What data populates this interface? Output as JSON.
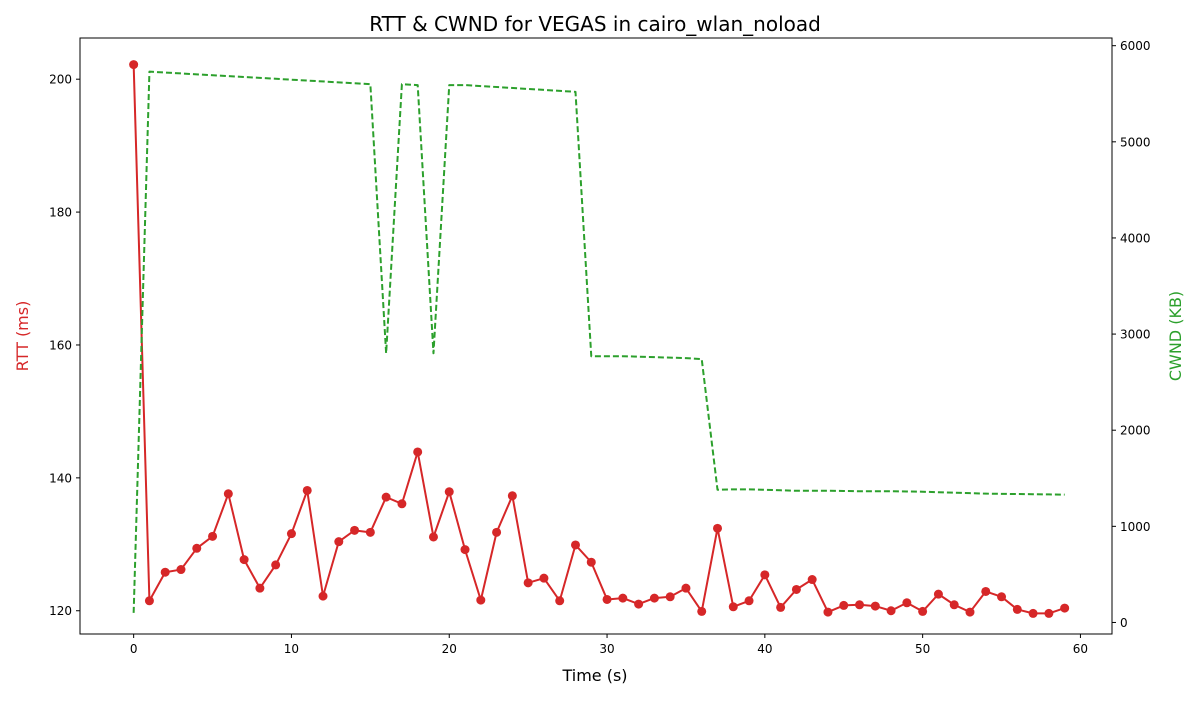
{
  "chart_data": {
    "type": "line",
    "title": "RTT & CWND for VEGAS in cairo_wlan_noload",
    "xlabel": "Time (s)",
    "ylabel_left": "RTT (ms)",
    "ylabel_right": "CWND (KB)",
    "xlim": [
      -3.4,
      62
    ],
    "ylim_left": [
      116.5,
      206.2
    ],
    "ylim_right": [
      -120,
      6080
    ],
    "x_ticks": [
      "0",
      "10",
      "20",
      "30",
      "40",
      "50",
      "60"
    ],
    "y_left_ticks": [
      "120",
      "140",
      "160",
      "180",
      "200"
    ],
    "y_right_ticks": [
      "0",
      "1000",
      "2000",
      "3000",
      "4000",
      "5000",
      "6000"
    ],
    "grid": false,
    "colors": {
      "rtt": "#d62728",
      "cwnd": "#2ca02c"
    },
    "series": [
      {
        "axis": "left",
        "style": "solid-with-markers",
        "x": [
          0,
          1,
          2,
          3,
          4,
          5,
          6,
          7,
          8,
          9,
          10,
          11,
          12,
          13,
          14,
          15,
          16,
          17,
          18,
          19,
          20,
          21,
          22,
          23,
          24,
          25,
          26,
          27,
          28,
          29,
          30,
          31,
          32,
          33,
          34,
          35,
          36,
          37,
          38,
          39,
          40,
          41,
          42,
          43,
          44,
          45,
          46,
          47,
          48,
          49,
          50,
          51,
          52,
          53,
          54,
          55,
          56,
          57,
          58,
          59
        ],
        "values": [
          202.2,
          121.5,
          125.8,
          126.2,
          129.4,
          131.2,
          137.6,
          127.7,
          123.4,
          126.9,
          131.6,
          138.1,
          122.2,
          130.4,
          132.1,
          131.8,
          137.1,
          136.1,
          143.9,
          131.1,
          137.9,
          129.2,
          121.6,
          131.8,
          137.3,
          124.2,
          124.9,
          121.5,
          129.9,
          127.3,
          121.7,
          121.9,
          121.0,
          121.9,
          122.1,
          123.4,
          119.9,
          132.4,
          120.6,
          121.5,
          125.4,
          120.5,
          123.2,
          124.7,
          119.8,
          120.8,
          120.9,
          120.7,
          120.0,
          121.2,
          119.9,
          122.5,
          120.9,
          119.8,
          122.9,
          122.1,
          120.2,
          119.6,
          119.6,
          120.4
        ]
      },
      {
        "axis": "right",
        "style": "dashed",
        "x": [
          0,
          1,
          15,
          16,
          17,
          18,
          19,
          20,
          21,
          28,
          29,
          30,
          31,
          32,
          33,
          34,
          35,
          36,
          37,
          38,
          39,
          40,
          41,
          42,
          43,
          44,
          45,
          46,
          47,
          48,
          49,
          50,
          51,
          52,
          53,
          54,
          55,
          56,
          57,
          58,
          59
        ],
        "values": [
          100,
          5730,
          5600,
          2800,
          5600,
          5590,
          2800,
          5590,
          5590,
          5520,
          2770,
          2770,
          2770,
          2765,
          2760,
          2755,
          2750,
          2740,
          1380,
          1385,
          1385,
          1380,
          1375,
          1370,
          1370,
          1370,
          1368,
          1365,
          1365,
          1365,
          1363,
          1360,
          1355,
          1350,
          1345,
          1340,
          1338,
          1336,
          1334,
          1332,
          1330
        ]
      }
    ]
  }
}
